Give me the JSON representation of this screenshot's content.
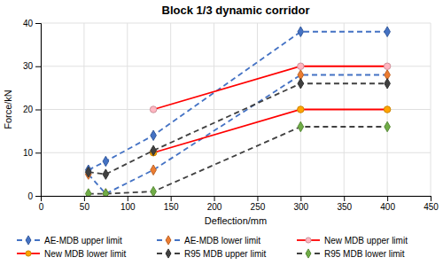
{
  "chart_data": {
    "type": "line",
    "title": "Block 1/3 dynamic corridor",
    "x_label": "Deflection/mm",
    "y_label": "Force/kN",
    "xlim": [
      0,
      450
    ],
    "ylim": [
      0,
      40
    ],
    "xticks": [
      0,
      50,
      100,
      150,
      200,
      250,
      300,
      350,
      400,
      450
    ],
    "yticks": [
      0,
      10,
      20,
      30,
      40
    ],
    "grid": true,
    "legend": "bottom",
    "series": [
      {
        "name": "AE-MDB upper limit",
        "color": "#4472C4",
        "marker": "diamond",
        "line_style": "dashed",
        "x": [
          55,
          75,
          130,
          300,
          400
        ],
        "values": [
          6,
          8,
          14,
          38,
          38
        ],
        "colors": [
          "#4472C4",
          "#4472C4",
          "#4472C4",
          "#4472C4",
          "#4472C4"
        ]
      },
      {
        "name": "AE-MDB lower limit",
        "color": "#4472C4",
        "marker": "diamond",
        "line_style": "dashed",
        "x": [
          55,
          75,
          130,
          300,
          400
        ],
        "values": [
          5,
          0.5,
          6,
          28,
          28
        ],
        "colors": [
          "#ED7D31",
          "#ED7D31",
          "#ED7D31",
          "#ED7D31",
          "#ED7D31"
        ]
      },
      {
        "name": "New MDB upper limit",
        "color": "#FF0000",
        "marker": "circle",
        "line_style": "solid",
        "x": [
          130,
          300,
          400
        ],
        "values": [
          20,
          30,
          30
        ],
        "colors": [
          "#FFB6C1",
          "#FFB6C1",
          "#FFB6C1"
        ]
      },
      {
        "name": "New MDB lower limit",
        "color": "#FF0000",
        "marker": "circle",
        "line_style": "solid",
        "x": [
          130,
          300,
          400
        ],
        "values": [
          10,
          20,
          20
        ],
        "colors": [
          "#FFA500",
          "#FFA500",
          "#FFA500"
        ]
      },
      {
        "name": "R95 MDB upper limit",
        "color": "#404040",
        "marker": "diamond",
        "line_style": "dashed",
        "x": [
          55,
          75,
          130,
          300,
          400
        ],
        "values": [
          5.5,
          5,
          10.5,
          26,
          26
        ],
        "colors": [
          "#404040",
          "#404040",
          "#404040",
          "#404040",
          "#404040"
        ]
      },
      {
        "name": "R95 MDB lower limit",
        "color": "#404040",
        "marker": "diamond",
        "line_style": "dashed",
        "x": [
          55,
          75,
          130,
          300,
          400
        ],
        "values": [
          0.5,
          0.5,
          1,
          16,
          16
        ],
        "colors": [
          "#70AD47",
          "#70AD47",
          "#70AD47",
          "#70AD47",
          "#70AD47"
        ]
      }
    ]
  }
}
